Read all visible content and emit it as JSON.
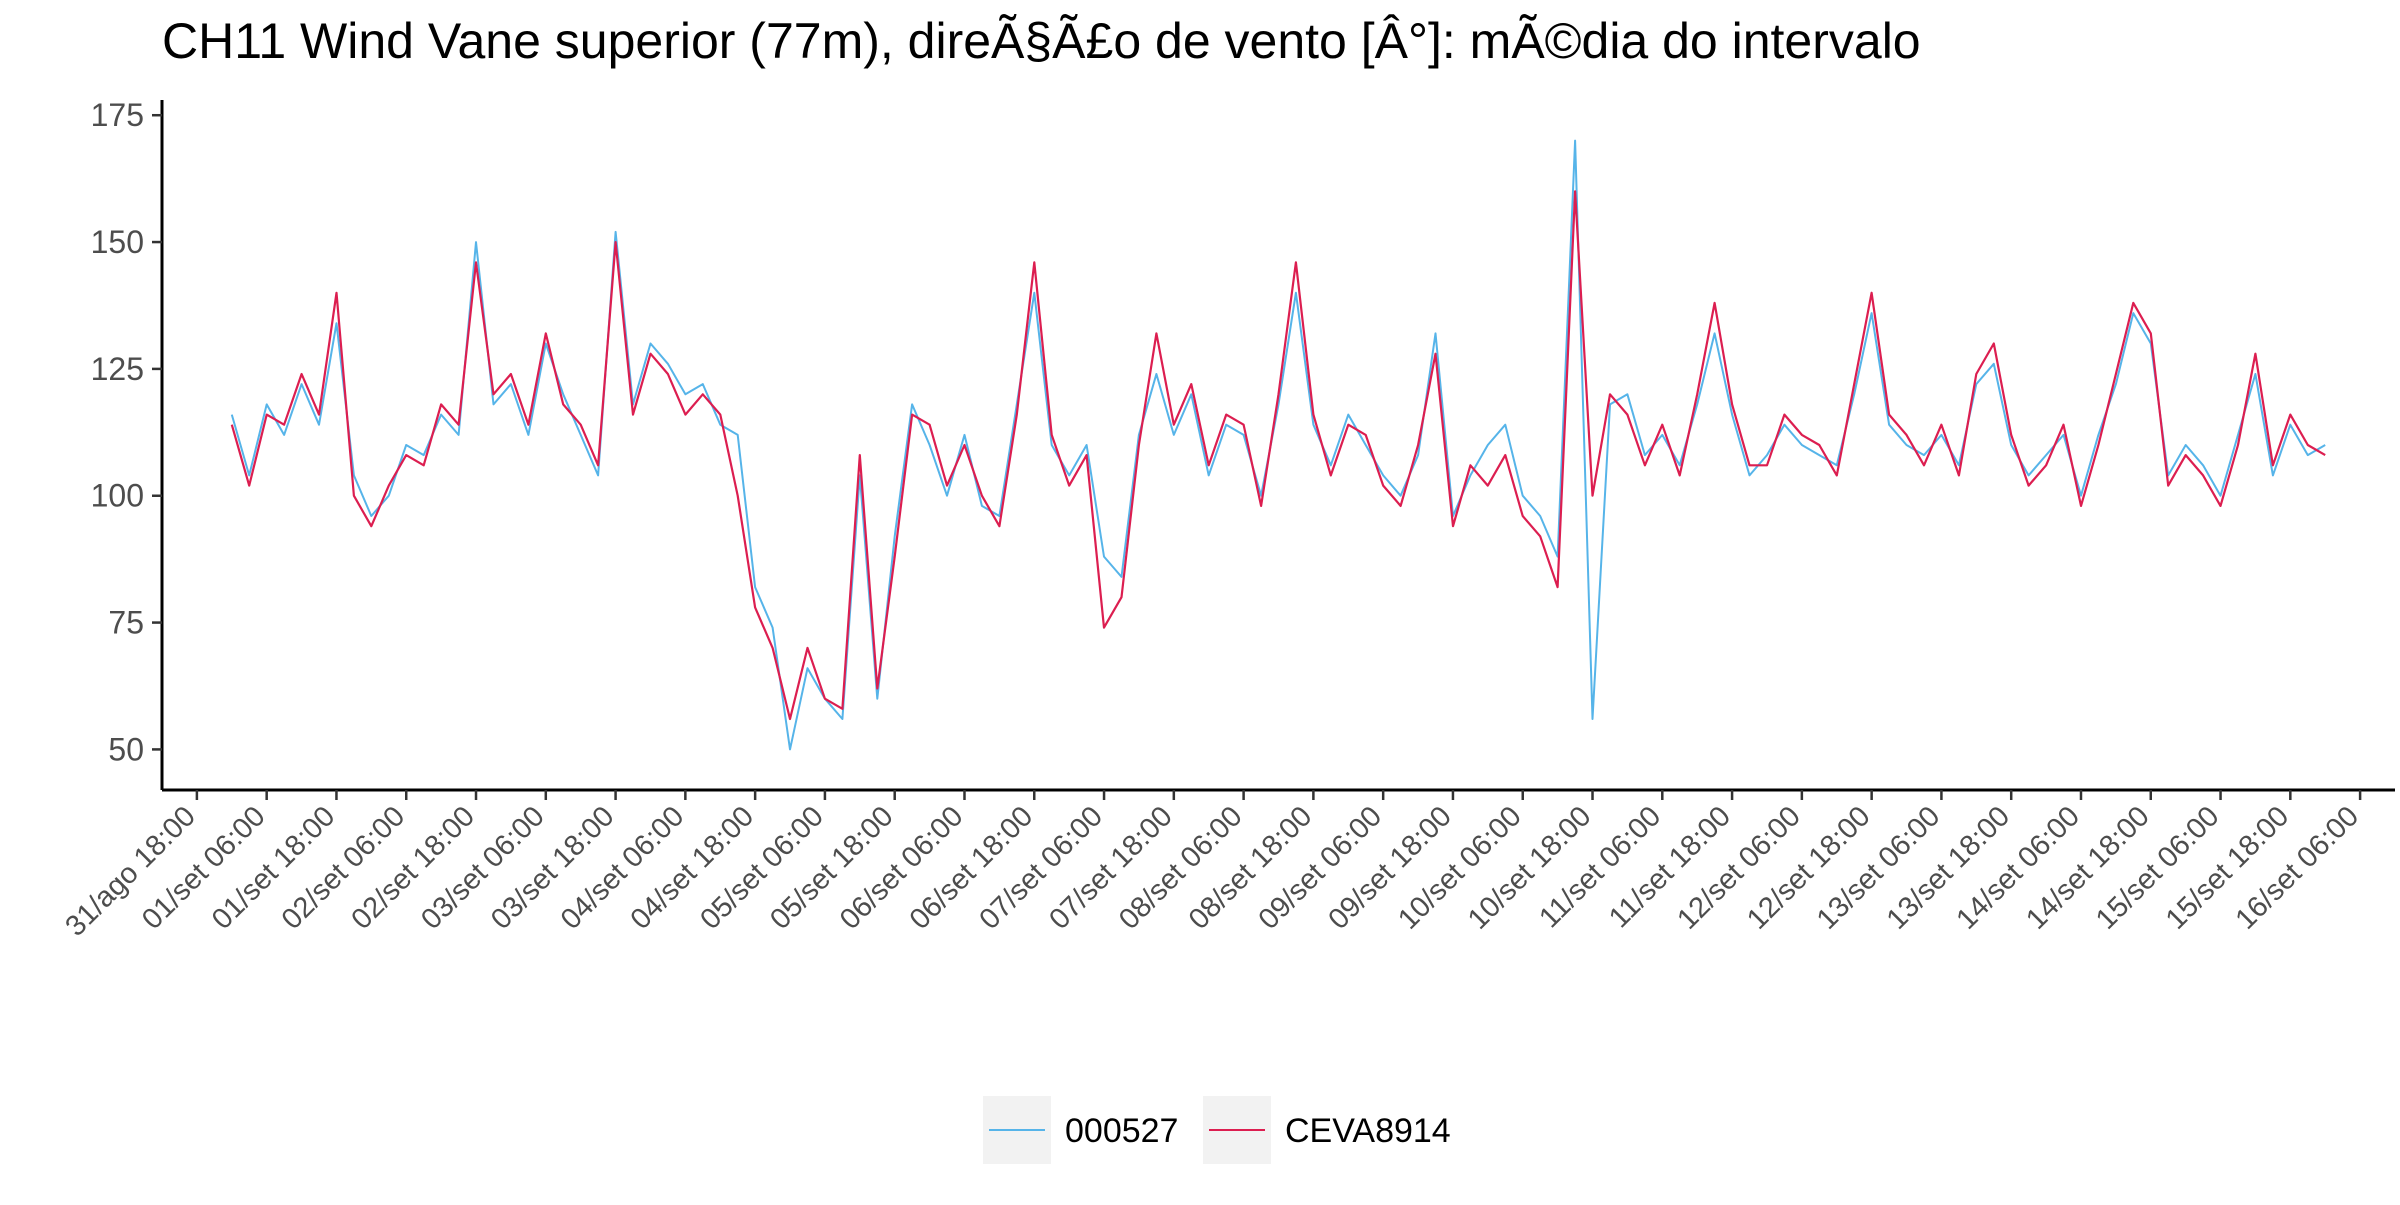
{
  "chart_data": {
    "type": "line",
    "title": "CH11 Wind Vane superior (77m), direÃ§Ã£o de vento [Â°]: mÃ©dia do intervalo",
    "xlabel": "",
    "ylabel": "",
    "ylim": [
      42,
      178
    ],
    "yticks": [
      50,
      75,
      100,
      125,
      150,
      175
    ],
    "x_start": "2023-08-31T12:00",
    "x_end": "2023-09-16T12:00",
    "xticks": [
      {
        "t": "2023-08-31T18:00",
        "label": "31/ago 18:00"
      },
      {
        "t": "2023-09-01T06:00",
        "label": "01/set 06:00"
      },
      {
        "t": "2023-09-01T18:00",
        "label": "01/set 18:00"
      },
      {
        "t": "2023-09-02T06:00",
        "label": "02/set 06:00"
      },
      {
        "t": "2023-09-02T18:00",
        "label": "02/set 18:00"
      },
      {
        "t": "2023-09-03T06:00",
        "label": "03/set 06:00"
      },
      {
        "t": "2023-09-03T18:00",
        "label": "03/set 18:00"
      },
      {
        "t": "2023-09-04T06:00",
        "label": "04/set 06:00"
      },
      {
        "t": "2023-09-04T18:00",
        "label": "04/set 18:00"
      },
      {
        "t": "2023-09-05T06:00",
        "label": "05/set 06:00"
      },
      {
        "t": "2023-09-05T18:00",
        "label": "05/set 18:00"
      },
      {
        "t": "2023-09-06T06:00",
        "label": "06/set 06:00"
      },
      {
        "t": "2023-09-06T18:00",
        "label": "06/set 18:00"
      },
      {
        "t": "2023-09-07T06:00",
        "label": "07/set 06:00"
      },
      {
        "t": "2023-09-07T18:00",
        "label": "07/set 18:00"
      },
      {
        "t": "2023-09-08T06:00",
        "label": "08/set 06:00"
      },
      {
        "t": "2023-09-08T18:00",
        "label": "08/set 18:00"
      },
      {
        "t": "2023-09-09T06:00",
        "label": "09/set 06:00"
      },
      {
        "t": "2023-09-09T18:00",
        "label": "09/set 18:00"
      },
      {
        "t": "2023-09-10T06:00",
        "label": "10/set 06:00"
      },
      {
        "t": "2023-09-10T18:00",
        "label": "10/set 18:00"
      },
      {
        "t": "2023-09-11T06:00",
        "label": "11/set 06:00"
      },
      {
        "t": "2023-09-11T18:00",
        "label": "11/set 18:00"
      },
      {
        "t": "2023-09-12T06:00",
        "label": "12/set 06:00"
      },
      {
        "t": "2023-09-12T18:00",
        "label": "12/set 18:00"
      },
      {
        "t": "2023-09-13T06:00",
        "label": "13/set 06:00"
      },
      {
        "t": "2023-09-13T18:00",
        "label": "13/set 18:00"
      },
      {
        "t": "2023-09-14T06:00",
        "label": "14/set 06:00"
      },
      {
        "t": "2023-09-14T18:00",
        "label": "14/set 18:00"
      },
      {
        "t": "2023-09-15T06:00",
        "label": "15/set 06:00"
      },
      {
        "t": "2023-09-15T18:00",
        "label": "15/set 18:00"
      },
      {
        "t": "2023-09-16T06:00",
        "label": "16/set 06:00"
      }
    ],
    "grid": false,
    "legend_position": "bottom",
    "series": [
      {
        "name": "000527",
        "color": "#56B4E9",
        "x": [
          "2023-09-01T00:00",
          "2023-09-01T03:00",
          "2023-09-01T06:00",
          "2023-09-01T09:00",
          "2023-09-01T12:00",
          "2023-09-01T15:00",
          "2023-09-01T18:00",
          "2023-09-01T21:00",
          "2023-09-02T00:00",
          "2023-09-02T03:00",
          "2023-09-02T06:00",
          "2023-09-02T09:00",
          "2023-09-02T12:00",
          "2023-09-02T15:00",
          "2023-09-02T18:00",
          "2023-09-02T21:00",
          "2023-09-03T00:00",
          "2023-09-03T03:00",
          "2023-09-03T06:00",
          "2023-09-03T09:00",
          "2023-09-03T12:00",
          "2023-09-03T15:00",
          "2023-09-03T18:00",
          "2023-09-03T21:00",
          "2023-09-04T00:00",
          "2023-09-04T03:00",
          "2023-09-04T06:00",
          "2023-09-04T09:00",
          "2023-09-04T12:00",
          "2023-09-04T15:00",
          "2023-09-04T18:00",
          "2023-09-04T21:00",
          "2023-09-05T00:00",
          "2023-09-05T03:00",
          "2023-09-05T06:00",
          "2023-09-05T09:00",
          "2023-09-05T12:00",
          "2023-09-05T15:00",
          "2023-09-05T18:00",
          "2023-09-05T21:00",
          "2023-09-06T00:00",
          "2023-09-06T03:00",
          "2023-09-06T06:00",
          "2023-09-06T09:00",
          "2023-09-06T12:00",
          "2023-09-06T15:00",
          "2023-09-06T18:00",
          "2023-09-06T21:00",
          "2023-09-07T00:00",
          "2023-09-07T03:00",
          "2023-09-07T06:00",
          "2023-09-07T09:00",
          "2023-09-07T12:00",
          "2023-09-07T15:00",
          "2023-09-07T18:00",
          "2023-09-07T21:00",
          "2023-09-08T00:00",
          "2023-09-08T03:00",
          "2023-09-08T06:00",
          "2023-09-08T09:00",
          "2023-09-08T12:00",
          "2023-09-08T15:00",
          "2023-09-08T18:00",
          "2023-09-08T21:00",
          "2023-09-09T00:00",
          "2023-09-09T03:00",
          "2023-09-09T06:00",
          "2023-09-09T09:00",
          "2023-09-09T12:00",
          "2023-09-09T15:00",
          "2023-09-09T18:00",
          "2023-09-09T21:00",
          "2023-09-10T00:00",
          "2023-09-10T03:00",
          "2023-09-10T06:00",
          "2023-09-10T09:00",
          "2023-09-10T12:00",
          "2023-09-10T15:00",
          "2023-09-10T18:00",
          "2023-09-10T21:00",
          "2023-09-11T00:00",
          "2023-09-11T03:00",
          "2023-09-11T06:00",
          "2023-09-11T09:00",
          "2023-09-11T12:00",
          "2023-09-11T15:00",
          "2023-09-11T18:00",
          "2023-09-11T21:00",
          "2023-09-12T00:00",
          "2023-09-12T03:00",
          "2023-09-12T06:00",
          "2023-09-12T09:00",
          "2023-09-12T12:00",
          "2023-09-12T15:00",
          "2023-09-12T18:00",
          "2023-09-12T21:00",
          "2023-09-13T00:00",
          "2023-09-13T03:00",
          "2023-09-13T06:00",
          "2023-09-13T09:00",
          "2023-09-13T12:00",
          "2023-09-13T15:00",
          "2023-09-13T18:00",
          "2023-09-13T21:00",
          "2023-09-14T00:00",
          "2023-09-14T03:00",
          "2023-09-14T06:00",
          "2023-09-14T09:00",
          "2023-09-14T12:00",
          "2023-09-14T15:00",
          "2023-09-14T18:00",
          "2023-09-14T21:00",
          "2023-09-15T00:00",
          "2023-09-15T03:00",
          "2023-09-15T06:00",
          "2023-09-15T09:00",
          "2023-09-15T12:00",
          "2023-09-15T15:00",
          "2023-09-15T18:00",
          "2023-09-15T21:00",
          "2023-09-16T00:00"
        ],
        "y": [
          116,
          104,
          118,
          112,
          122,
          114,
          134,
          104,
          96,
          100,
          110,
          108,
          116,
          112,
          150,
          118,
          122,
          112,
          130,
          120,
          112,
          104,
          152,
          118,
          130,
          126,
          120,
          122,
          114,
          112,
          82,
          74,
          50,
          66,
          60,
          56,
          104,
          60,
          92,
          118,
          110,
          100,
          112,
          98,
          96,
          118,
          140,
          110,
          104,
          110,
          88,
          84,
          112,
          124,
          112,
          120,
          104,
          114,
          112,
          100,
          118,
          140,
          114,
          106,
          116,
          110,
          104,
          100,
          108,
          132,
          96,
          104,
          110,
          114,
          100,
          96,
          88,
          170,
          56,
          118,
          120,
          108,
          112,
          106,
          118,
          132,
          116,
          104,
          108,
          114,
          110,
          108,
          106,
          120,
          136,
          114,
          110,
          108,
          112,
          106,
          122,
          126,
          110,
          104,
          108,
          112,
          100,
          112,
          122,
          136,
          130,
          104,
          110,
          106,
          100,
          112,
          124,
          104,
          114,
          108,
          110
        ]
      },
      {
        "name": "CEVA8914",
        "color": "#DC1E50",
        "x": [
          "2023-09-01T00:00",
          "2023-09-01T03:00",
          "2023-09-01T06:00",
          "2023-09-01T09:00",
          "2023-09-01T12:00",
          "2023-09-01T15:00",
          "2023-09-01T18:00",
          "2023-09-01T21:00",
          "2023-09-02T00:00",
          "2023-09-02T03:00",
          "2023-09-02T06:00",
          "2023-09-02T09:00",
          "2023-09-02T12:00",
          "2023-09-02T15:00",
          "2023-09-02T18:00",
          "2023-09-02T21:00",
          "2023-09-03T00:00",
          "2023-09-03T03:00",
          "2023-09-03T06:00",
          "2023-09-03T09:00",
          "2023-09-03T12:00",
          "2023-09-03T15:00",
          "2023-09-03T18:00",
          "2023-09-03T21:00",
          "2023-09-04T00:00",
          "2023-09-04T03:00",
          "2023-09-04T06:00",
          "2023-09-04T09:00",
          "2023-09-04T12:00",
          "2023-09-04T15:00",
          "2023-09-04T18:00",
          "2023-09-04T21:00",
          "2023-09-05T00:00",
          "2023-09-05T03:00",
          "2023-09-05T06:00",
          "2023-09-05T09:00",
          "2023-09-05T12:00",
          "2023-09-05T15:00",
          "2023-09-05T18:00",
          "2023-09-05T21:00",
          "2023-09-06T00:00",
          "2023-09-06T03:00",
          "2023-09-06T06:00",
          "2023-09-06T09:00",
          "2023-09-06T12:00",
          "2023-09-06T15:00",
          "2023-09-06T18:00",
          "2023-09-06T21:00",
          "2023-09-07T00:00",
          "2023-09-07T03:00",
          "2023-09-07T06:00",
          "2023-09-07T09:00",
          "2023-09-07T12:00",
          "2023-09-07T15:00",
          "2023-09-07T18:00",
          "2023-09-07T21:00",
          "2023-09-08T00:00",
          "2023-09-08T03:00",
          "2023-09-08T06:00",
          "2023-09-08T09:00",
          "2023-09-08T12:00",
          "2023-09-08T15:00",
          "2023-09-08T18:00",
          "2023-09-08T21:00",
          "2023-09-09T00:00",
          "2023-09-09T03:00",
          "2023-09-09T06:00",
          "2023-09-09T09:00",
          "2023-09-09T12:00",
          "2023-09-09T15:00",
          "2023-09-09T18:00",
          "2023-09-09T21:00",
          "2023-09-10T00:00",
          "2023-09-10T03:00",
          "2023-09-10T06:00",
          "2023-09-10T09:00",
          "2023-09-10T12:00",
          "2023-09-10T15:00",
          "2023-09-10T18:00",
          "2023-09-10T21:00",
          "2023-09-11T00:00",
          "2023-09-11T03:00",
          "2023-09-11T06:00",
          "2023-09-11T09:00",
          "2023-09-11T12:00",
          "2023-09-11T15:00",
          "2023-09-11T18:00",
          "2023-09-11T21:00",
          "2023-09-12T00:00",
          "2023-09-12T03:00",
          "2023-09-12T06:00",
          "2023-09-12T09:00",
          "2023-09-12T12:00",
          "2023-09-12T15:00",
          "2023-09-12T18:00",
          "2023-09-12T21:00",
          "2023-09-13T00:00",
          "2023-09-13T03:00",
          "2023-09-13T06:00",
          "2023-09-13T09:00",
          "2023-09-13T12:00",
          "2023-09-13T15:00",
          "2023-09-13T18:00",
          "2023-09-13T21:00",
          "2023-09-14T00:00",
          "2023-09-14T03:00",
          "2023-09-14T06:00",
          "2023-09-14T09:00",
          "2023-09-14T12:00",
          "2023-09-14T15:00",
          "2023-09-14T18:00",
          "2023-09-14T21:00",
          "2023-09-15T00:00",
          "2023-09-15T03:00",
          "2023-09-15T06:00",
          "2023-09-15T09:00",
          "2023-09-15T12:00",
          "2023-09-15T15:00",
          "2023-09-15T18:00",
          "2023-09-15T21:00",
          "2023-09-16T00:00"
        ],
        "y": [
          114,
          102,
          116,
          114,
          124,
          116,
          140,
          100,
          94,
          102,
          108,
          106,
          118,
          114,
          146,
          120,
          124,
          114,
          132,
          118,
          114,
          106,
          150,
          116,
          128,
          124,
          116,
          120,
          116,
          100,
          78,
          70,
          56,
          70,
          60,
          58,
          108,
          62,
          88,
          116,
          114,
          102,
          110,
          100,
          94,
          116,
          146,
          112,
          102,
          108,
          74,
          80,
          110,
          132,
          114,
          122,
          106,
          116,
          114,
          98,
          120,
          146,
          116,
          104,
          114,
          112,
          102,
          98,
          110,
          128,
          94,
          106,
          102,
          108,
          96,
          92,
          82,
          160,
          100,
          120,
          116,
          106,
          114,
          104,
          120,
          138,
          118,
          106,
          106,
          116,
          112,
          110,
          104,
          122,
          140,
          116,
          112,
          106,
          114,
          104,
          124,
          130,
          112,
          102,
          106,
          114,
          98,
          110,
          124,
          138,
          132,
          102,
          108,
          104,
          98,
          110,
          128,
          106,
          116,
          110,
          108
        ]
      }
    ]
  }
}
